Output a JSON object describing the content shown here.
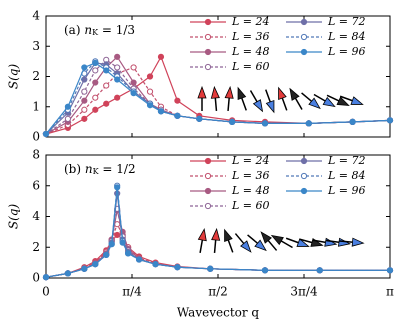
{
  "chart_data": [
    {
      "type": "line",
      "panel_label": {
        "prefix": "(a) ",
        "var": "n",
        "sub": "K",
        "rest": " = 1/3"
      },
      "ylabel": "S(q)",
      "x": [
        0,
        0.2,
        0.35,
        0.45,
        0.55,
        0.65,
        0.8,
        0.95,
        1.05,
        1.2,
        1.4,
        1.7,
        2.0,
        2.4,
        2.8,
        3.1416
      ],
      "xlim": [
        0,
        3.1416
      ],
      "ylim": [
        0,
        4
      ],
      "yticks": [
        0,
        1,
        2,
        3,
        4
      ],
      "series": [
        {
          "name": "L = 24",
          "color": "#d0435a",
          "marker": "filled",
          "values": [
            0.1,
            0.3,
            0.6,
            0.9,
            1.1,
            1.3,
            1.6,
            2.0,
            2.65,
            1.2,
            0.7,
            0.55,
            0.5,
            0.45,
            0.5,
            0.55
          ]
        },
        {
          "name": "L = 36",
          "color": "#c2506d",
          "marker": "open",
          "values": [
            0.1,
            0.4,
            0.9,
            1.3,
            1.7,
            2.1,
            2.3,
            1.5,
            1.0,
            0.7,
            0.6,
            0.5,
            0.45,
            0.45,
            0.5,
            0.55
          ]
        },
        {
          "name": "L = 48",
          "color": "#a85a82",
          "marker": "filled",
          "values": [
            0.1,
            0.5,
            1.2,
            1.8,
            2.3,
            2.65,
            1.8,
            1.1,
            0.9,
            0.7,
            0.6,
            0.5,
            0.45,
            0.45,
            0.5,
            0.55
          ]
        },
        {
          "name": "L = 60",
          "color": "#8e6596",
          "marker": "open",
          "values": [
            0.1,
            0.6,
            1.5,
            2.2,
            2.55,
            2.3,
            1.6,
            1.1,
            0.9,
            0.7,
            0.6,
            0.5,
            0.45,
            0.45,
            0.5,
            0.55
          ]
        },
        {
          "name": "L = 72",
          "color": "#6e6fa8",
          "marker": "filled",
          "values": [
            0.1,
            0.8,
            1.9,
            2.45,
            2.4,
            2.1,
            1.5,
            1.1,
            0.85,
            0.7,
            0.6,
            0.5,
            0.45,
            0.45,
            0.5,
            0.55
          ]
        },
        {
          "name": "L = 84",
          "color": "#5179b8",
          "marker": "open",
          "values": [
            0.1,
            0.9,
            2.1,
            2.5,
            2.3,
            2.0,
            1.5,
            1.1,
            0.85,
            0.7,
            0.6,
            0.5,
            0.45,
            0.45,
            0.5,
            0.55
          ]
        },
        {
          "name": "L = 96",
          "color": "#3a86c8",
          "marker": "filled",
          "values": [
            0.1,
            1.0,
            2.3,
            2.45,
            2.2,
            1.9,
            1.45,
            1.05,
            0.85,
            0.7,
            0.6,
            0.5,
            0.45,
            0.45,
            0.5,
            0.55
          ]
        }
      ]
    },
    {
      "type": "line",
      "panel_label": {
        "prefix": "(b) ",
        "var": "n",
        "sub": "K",
        "rest": " = 1/2"
      },
      "ylabel": "S(q)",
      "xlabel": "Wavevector q",
      "x": [
        0,
        0.2,
        0.35,
        0.45,
        0.55,
        0.6,
        0.65,
        0.7,
        0.75,
        0.85,
        1.0,
        1.2,
        1.5,
        2.0,
        2.5,
        3.1416
      ],
      "xlim": [
        0,
        3.1416
      ],
      "xticks": [
        0,
        {
          "value": 0.7854,
          "label": "π/4"
        },
        {
          "value": 1.5708,
          "label": "π/2"
        },
        {
          "value": 2.3562,
          "label": "3π/4"
        },
        {
          "value": 3.1416,
          "label": "π"
        }
      ],
      "ylim": [
        0,
        8
      ],
      "yticks": [
        0,
        2,
        4,
        6,
        8
      ],
      "series": [
        {
          "name": "L = 24",
          "color": "#d0435a",
          "marker": "filled",
          "values": [
            0.05,
            0.3,
            0.7,
            1.1,
            1.8,
            2.4,
            2.8,
            2.6,
            2.0,
            1.4,
            1.0,
            0.75,
            0.6,
            0.5,
            0.5,
            0.5
          ]
        },
        {
          "name": "L = 36",
          "color": "#c2506d",
          "marker": "open",
          "values": [
            0.05,
            0.3,
            0.65,
            1.0,
            1.7,
            2.5,
            3.5,
            2.8,
            2.0,
            1.3,
            0.95,
            0.72,
            0.6,
            0.5,
            0.5,
            0.5
          ]
        },
        {
          "name": "L = 48",
          "color": "#a85a82",
          "marker": "filled",
          "values": [
            0.05,
            0.3,
            0.6,
            0.95,
            1.6,
            2.5,
            4.4,
            3.0,
            1.9,
            1.25,
            0.9,
            0.7,
            0.6,
            0.5,
            0.5,
            0.5
          ]
        },
        {
          "name": "L = 60",
          "color": "#8e6596",
          "marker": "open",
          "values": [
            0.05,
            0.3,
            0.6,
            0.9,
            1.55,
            2.4,
            4.5,
            2.7,
            1.8,
            1.2,
            0.9,
            0.7,
            0.6,
            0.5,
            0.5,
            0.5
          ]
        },
        {
          "name": "L = 72",
          "color": "#6e6fa8",
          "marker": "filled",
          "values": [
            0.05,
            0.3,
            0.6,
            0.9,
            1.5,
            2.3,
            5.5,
            2.5,
            1.7,
            1.2,
            0.9,
            0.7,
            0.6,
            0.5,
            0.5,
            0.5
          ]
        },
        {
          "name": "L = 84",
          "color": "#5179b8",
          "marker": "open",
          "values": [
            0.05,
            0.3,
            0.6,
            0.9,
            1.5,
            2.2,
            6.0,
            2.4,
            1.6,
            1.2,
            0.9,
            0.7,
            0.6,
            0.5,
            0.5,
            0.5
          ]
        },
        {
          "name": "L = 96",
          "color": "#3a86c8",
          "marker": "filled",
          "values": [
            0.05,
            0.3,
            0.6,
            0.9,
            1.5,
            2.2,
            5.9,
            2.3,
            1.6,
            1.2,
            0.9,
            0.7,
            0.6,
            0.5,
            0.5,
            0.5
          ]
        }
      ]
    }
  ]
}
